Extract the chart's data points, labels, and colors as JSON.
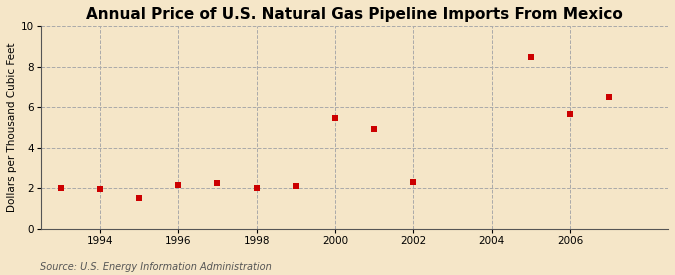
{
  "title": "Annual Price of U.S. Natural Gas Pipeline Imports From Mexico",
  "ylabel": "Dollars per Thousand Cubic Feet",
  "source": "Source: U.S. Energy Information Administration",
  "background_color": "#f5e6c8",
  "marker_color": "#cc0000",
  "years": [
    1993,
    1994,
    1995,
    1996,
    1997,
    1998,
    1999,
    2000,
    2001,
    2002,
    2005,
    2006,
    2007
  ],
  "values": [
    2.0,
    1.95,
    1.55,
    2.15,
    2.25,
    2.0,
    2.1,
    5.45,
    4.95,
    2.3,
    8.45,
    5.65,
    6.5
  ],
  "xlim": [
    1992.5,
    2008.5
  ],
  "ylim": [
    0,
    10
  ],
  "yticks": [
    0,
    2,
    4,
    6,
    8,
    10
  ],
  "xticks": [
    1994,
    1996,
    1998,
    2000,
    2002,
    2004,
    2006
  ],
  "title_fontsize": 11,
  "label_fontsize": 7.5,
  "tick_fontsize": 7.5,
  "source_fontsize": 7
}
